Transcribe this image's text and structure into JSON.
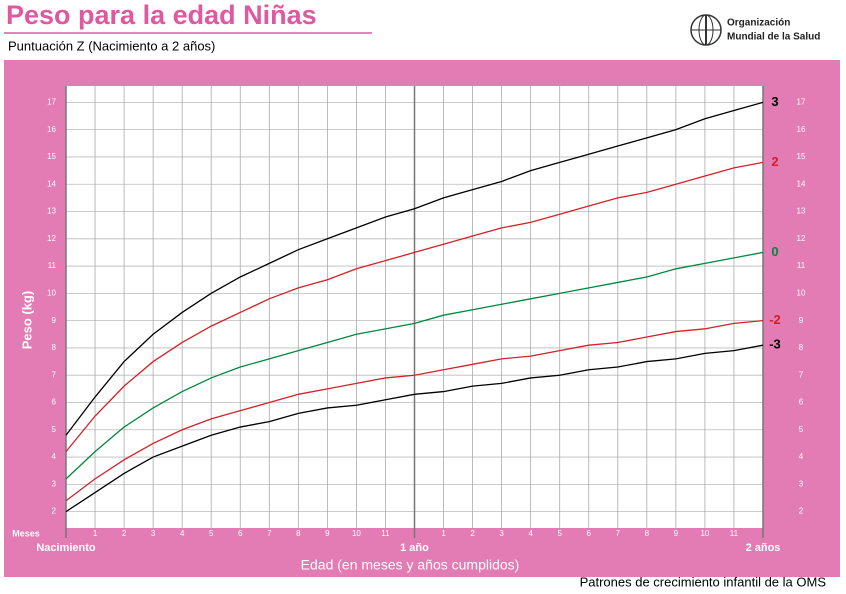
{
  "chart_data": {
    "type": "line",
    "title": "Peso para la edad Niñas",
    "subtitle": "Puntuación Z  (Nacimiento a 2 años)",
    "organization": [
      "Organización",
      "Mundial de la Salud"
    ],
    "footer": "Patrones de crecimiento infantil de la OMS",
    "xlabel": "Edad (en meses y años cumplidos)",
    "ylabel": "Peso (kg)",
    "x_unit_label": "Meses",
    "x": [
      0,
      1,
      2,
      3,
      4,
      5,
      6,
      7,
      8,
      9,
      10,
      11,
      12,
      13,
      14,
      15,
      16,
      17,
      18,
      19,
      20,
      21,
      22,
      23,
      24
    ],
    "xlim": [
      0,
      24
    ],
    "xticks": [
      1,
      2,
      3,
      4,
      5,
      6,
      7,
      8,
      9,
      10,
      11,
      {
        "value": 13,
        "label": "1"
      },
      {
        "value": 14,
        "label": "2"
      },
      {
        "value": 15,
        "label": "3"
      },
      {
        "value": 16,
        "label": "4"
      },
      {
        "value": 17,
        "label": "5"
      },
      {
        "value": 18,
        "label": "6"
      },
      {
        "value": 19,
        "label": "7"
      },
      {
        "value": 20,
        "label": "8"
      },
      {
        "value": 21,
        "label": "9"
      },
      {
        "value": 22,
        "label": "10"
      },
      {
        "value": 23,
        "label": "11"
      }
    ],
    "year_ticks": [
      {
        "value": 0,
        "label": "Nacimiento"
      },
      {
        "value": 12,
        "label": "1 año"
      },
      {
        "value": 24,
        "label": "2 años"
      }
    ],
    "ylim": [
      1.4,
      17.6
    ],
    "yticks": [
      2,
      3,
      4,
      5,
      6,
      7,
      8,
      9,
      10,
      11,
      12,
      13,
      14,
      15,
      16,
      17
    ],
    "grid": true,
    "series": [
      {
        "name": "3",
        "color": "#000000",
        "values": [
          4.8,
          6.2,
          7.5,
          8.5,
          9.3,
          10.0,
          10.6,
          11.1,
          11.6,
          12.0,
          12.4,
          12.8,
          13.1,
          13.5,
          13.8,
          14.1,
          14.5,
          14.8,
          15.1,
          15.4,
          15.7,
          16.0,
          16.4,
          16.7,
          17.0
        ]
      },
      {
        "name": "2",
        "color": "#d42027",
        "values": [
          4.2,
          5.5,
          6.6,
          7.5,
          8.2,
          8.8,
          9.3,
          9.8,
          10.2,
          10.5,
          10.9,
          11.2,
          11.5,
          11.8,
          12.1,
          12.4,
          12.6,
          12.9,
          13.2,
          13.5,
          13.7,
          14.0,
          14.3,
          14.6,
          14.8
        ]
      },
      {
        "name": "0",
        "color": "#00883c",
        "values": [
          3.2,
          4.2,
          5.1,
          5.8,
          6.4,
          6.9,
          7.3,
          7.6,
          7.9,
          8.2,
          8.5,
          8.7,
          8.9,
          9.2,
          9.4,
          9.6,
          9.8,
          10.0,
          10.2,
          10.4,
          10.6,
          10.9,
          11.1,
          11.3,
          11.5
        ]
      },
      {
        "name": "-2",
        "color": "#d42027",
        "values": [
          2.4,
          3.2,
          3.9,
          4.5,
          5.0,
          5.4,
          5.7,
          6.0,
          6.3,
          6.5,
          6.7,
          6.9,
          7.0,
          7.2,
          7.4,
          7.6,
          7.7,
          7.9,
          8.1,
          8.2,
          8.4,
          8.6,
          8.7,
          8.9,
          9.0
        ]
      },
      {
        "name": "-3",
        "color": "#000000",
        "values": [
          2.0,
          2.7,
          3.4,
          4.0,
          4.4,
          4.8,
          5.1,
          5.3,
          5.6,
          5.8,
          5.9,
          6.1,
          6.3,
          6.4,
          6.6,
          6.7,
          6.9,
          7.0,
          7.2,
          7.3,
          7.5,
          7.6,
          7.8,
          7.9,
          8.1
        ]
      }
    ]
  }
}
